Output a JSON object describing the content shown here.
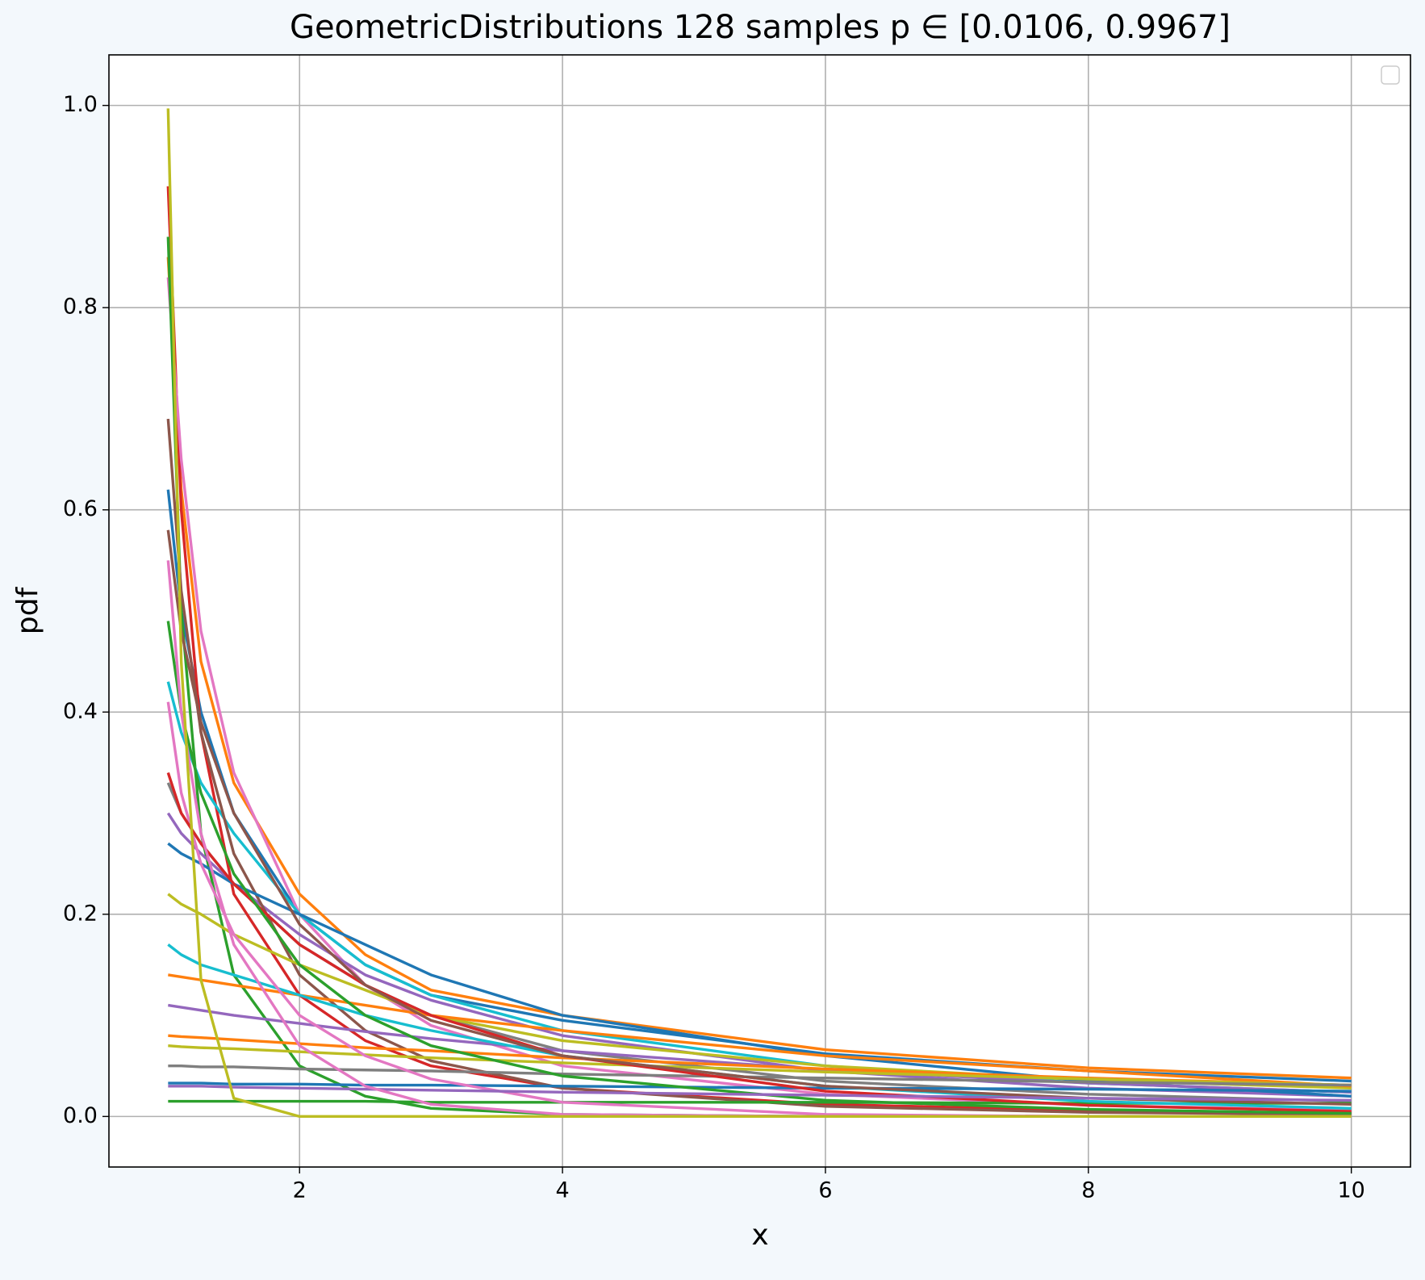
{
  "chart_data": {
    "type": "line",
    "title": "GeometricDistributions 128 samples p ∈  [0.0106, 0.9967]",
    "x_label": "x",
    "y_label": "pdf",
    "x": [
      1,
      1.1,
      1.25,
      1.5,
      2,
      2.5,
      3,
      4,
      6,
      8,
      10
    ],
    "xlim": [
      0.55,
      10.45
    ],
    "xticks": [
      2,
      4,
      6,
      8,
      10
    ],
    "ylim": [
      -0.05,
      1.05
    ],
    "yticks": [
      {
        "value": 0,
        "label": "0.0"
      },
      0.2,
      0.4,
      0.6,
      0.8,
      {
        "value": 1,
        "label": "1.0"
      }
    ],
    "grid": true,
    "legend": "upper right",
    "series": [
      {
        "color": "#ff7f0e",
        "values": [
          0.85,
          0.62,
          0.45,
          0.33,
          0.22,
          0.16,
          0.125,
          0.1,
          0.066,
          0.048,
          0.038
        ]
      },
      {
        "color": "#1f77b4",
        "values": [
          0.62,
          0.5,
          0.4,
          0.3,
          0.2,
          0.15,
          0.12,
          0.095,
          0.062,
          0.045,
          0.035
        ]
      },
      {
        "color": "#d62728",
        "values": [
          0.92,
          0.6,
          0.38,
          0.22,
          0.12,
          0.075,
          0.05,
          0.028,
          0.012,
          0.006,
          0.003
        ]
      },
      {
        "color": "#e377c2",
        "values": [
          0.83,
          0.65,
          0.48,
          0.34,
          0.2,
          0.13,
          0.09,
          0.05,
          0.022,
          0.011,
          0.006
        ]
      },
      {
        "color": "#2ca02c",
        "values": [
          0.87,
          0.5,
          0.28,
          0.14,
          0.05,
          0.02,
          0.008,
          0.002,
          0,
          0,
          0
        ]
      },
      {
        "color": "#17becf",
        "values": [
          0.43,
          0.38,
          0.33,
          0.28,
          0.2,
          0.15,
          0.12,
          0.085,
          0.05,
          0.033,
          0.024
        ]
      },
      {
        "color": "#9467bd",
        "values": [
          0.3,
          0.28,
          0.26,
          0.23,
          0.18,
          0.14,
          0.115,
          0.08,
          0.045,
          0.028,
          0.02
        ]
      },
      {
        "color": "#8c564b",
        "values": [
          0.69,
          0.52,
          0.38,
          0.26,
          0.14,
          0.085,
          0.055,
          0.028,
          0.01,
          0.004,
          0.002
        ]
      },
      {
        "color": "#7f7f7f",
        "values": [
          0.33,
          0.3,
          0.27,
          0.23,
          0.17,
          0.13,
          0.1,
          0.065,
          0.035,
          0.022,
          0.015
        ]
      },
      {
        "color": "#bcbd22",
        "values": [
          0.22,
          0.21,
          0.2,
          0.18,
          0.15,
          0.125,
          0.1,
          0.075,
          0.05,
          0.036,
          0.028
        ]
      },
      {
        "color": "#1f77b4",
        "values": [
          0.27,
          0.26,
          0.25,
          0.23,
          0.2,
          0.17,
          0.14,
          0.1,
          0.06,
          0.035,
          0.02
        ]
      },
      {
        "color": "#ff7f0e",
        "values": [
          0.14,
          0.138,
          0.135,
          0.13,
          0.12,
          0.11,
          0.1,
          0.085,
          0.06,
          0.045,
          0.03
        ]
      },
      {
        "color": "#9467bd",
        "values": [
          0.11,
          0.108,
          0.105,
          0.1,
          0.092,
          0.084,
          0.077,
          0.065,
          0.046,
          0.033,
          0.024
        ]
      },
      {
        "color": "#ff7f0e",
        "values": [
          0.08,
          0.079,
          0.078,
          0.076,
          0.072,
          0.068,
          0.065,
          0.058,
          0.047,
          0.038,
          0.031
        ]
      },
      {
        "color": "#bcbd22",
        "values": [
          0.07,
          0.069,
          0.068,
          0.067,
          0.064,
          0.061,
          0.058,
          0.053,
          0.044,
          0.037,
          0.031
        ]
      },
      {
        "color": "#7f7f7f",
        "values": [
          0.05,
          0.05,
          0.049,
          0.049,
          0.047,
          0.046,
          0.045,
          0.042,
          0.038,
          0.034,
          0.031
        ]
      },
      {
        "color": "#1f77b4",
        "values": [
          0.033,
          0.033,
          0.033,
          0.032,
          0.032,
          0.031,
          0.031,
          0.03,
          0.028,
          0.027,
          0.025
        ]
      },
      {
        "color": "#2ca02c",
        "values": [
          0.015,
          0.015,
          0.015,
          0.015,
          0.015,
          0.015,
          0.014,
          0.014,
          0.014,
          0.013,
          0.013
        ]
      },
      {
        "color": "#17becf",
        "values": [
          0.17,
          0.16,
          0.15,
          0.14,
          0.12,
          0.1,
          0.085,
          0.06,
          0.03,
          0.015,
          0.008
        ]
      },
      {
        "color": "#e377c2",
        "values": [
          0.41,
          0.32,
          0.25,
          0.18,
          0.1,
          0.06,
          0.037,
          0.014,
          0.002,
          0,
          0
        ]
      },
      {
        "color": "#d62728",
        "values": [
          0.34,
          0.3,
          0.27,
          0.23,
          0.17,
          0.13,
          0.1,
          0.06,
          0.025,
          0.011,
          0.005
        ]
      },
      {
        "color": "#8c564b",
        "values": [
          0.58,
          0.48,
          0.39,
          0.3,
          0.19,
          0.13,
          0.095,
          0.06,
          0.03,
          0.018,
          0.012
        ]
      },
      {
        "color": "#2ca02c",
        "values": [
          0.49,
          0.4,
          0.32,
          0.24,
          0.15,
          0.1,
          0.07,
          0.04,
          0.016,
          0.007,
          0.003
        ]
      },
      {
        "color": "#9467bd",
        "values": [
          0.03,
          0.03,
          0.03,
          0.029,
          0.028,
          0.027,
          0.026,
          0.024,
          0.021,
          0.018,
          0.016
        ]
      },
      {
        "color": "#e377c2",
        "values": [
          0.55,
          0.4,
          0.28,
          0.17,
          0.07,
          0.03,
          0.012,
          0.002,
          0,
          0,
          0
        ]
      },
      {
        "color": "#bcbd22",
        "values": [
          0.997,
          0.45,
          0.135,
          0.018,
          0,
          0,
          0,
          0,
          0,
          0,
          0
        ]
      }
    ]
  }
}
